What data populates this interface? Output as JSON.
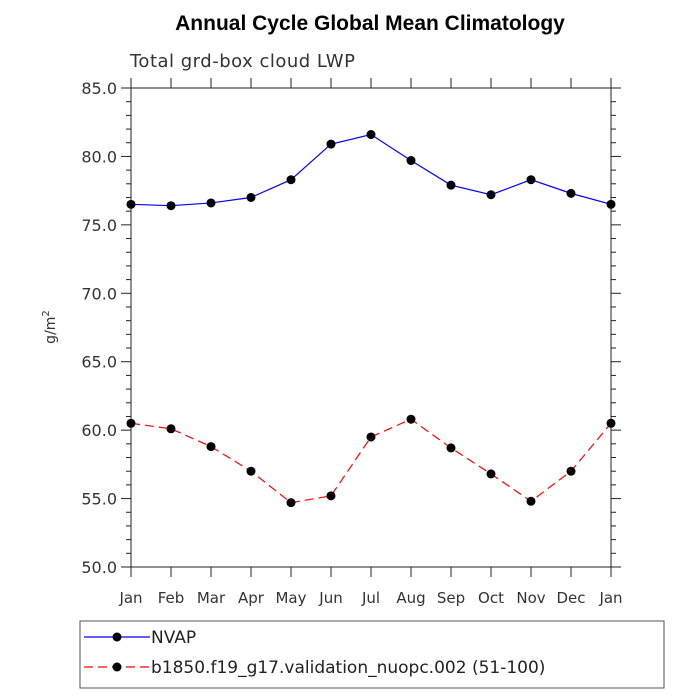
{
  "chart_data": {
    "type": "line",
    "title": "Annual Cycle Global Mean Climatology",
    "subtitle": "Total grd-box cloud LWP",
    "ylabel": "g/m",
    "ylabel_sup": "2",
    "xlabel": "",
    "ylim": [
      50,
      85
    ],
    "yticks": [
      "50.0",
      "55.0",
      "60.0",
      "65.0",
      "70.0",
      "75.0",
      "80.0",
      "85.0"
    ],
    "categories": [
      "Jan",
      "Feb",
      "Mar",
      "Apr",
      "May",
      "Jun",
      "Jul",
      "Aug",
      "Sep",
      "Oct",
      "Nov",
      "Dec",
      "Jan"
    ],
    "grid": false,
    "legend_position": "bottom",
    "series": [
      {
        "name": "NVAP",
        "color": "#0000ff",
        "style": "solid",
        "values": [
          76.5,
          76.4,
          76.6,
          77.0,
          78.3,
          80.9,
          81.6,
          79.7,
          77.9,
          77.2,
          78.3,
          77.3,
          76.5
        ]
      },
      {
        "name": "b1850.f19_g17.validation_nuopc.002 (51-100)",
        "color": "#ff0000",
        "style": "dashed",
        "values": [
          60.5,
          60.1,
          58.8,
          57.0,
          54.7,
          55.2,
          59.5,
          60.8,
          58.7,
          56.8,
          54.8,
          57.0,
          60.5
        ]
      }
    ]
  }
}
